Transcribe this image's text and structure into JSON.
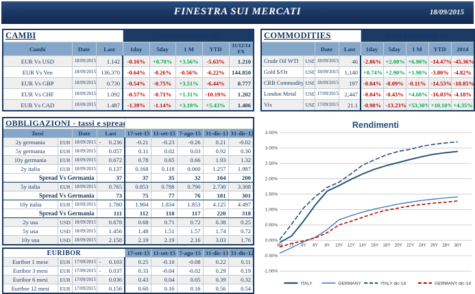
{
  "header": {
    "title": "FINESTRA SUI MERCATI",
    "date": "18/09/2015"
  },
  "palette": {
    "navy": "#17375E",
    "band_navy": "#1b3a66",
    "header_blue": "#84a7c9",
    "row_gray": "#efefef",
    "negative_red": "#C00000",
    "positive_green": "#00A550",
    "italy_line": "#1F4E79",
    "germany_line": "#2E75B6",
    "germany14_line": "#C00000"
  },
  "cambi": {
    "title": "CAMBI",
    "perf_header": "Performance %",
    "columns": [
      "Cambi",
      "Date",
      "Last",
      "1day",
      "5day",
      "1 M",
      "YTD",
      "31/12/14 FX"
    ],
    "rows": [
      {
        "name": "EUR Vs USD",
        "date": "18/09/2015",
        "last": "1.142",
        "perf": [
          "-0.16%",
          "+0.70%",
          "+3.56%",
          "-5.63%"
        ],
        "fx": "1.210"
      },
      {
        "name": "EUR Vs Yen",
        "date": "18/09/2015",
        "last": "136.370",
        "perf": [
          "-0.64%",
          "-0.26%",
          "-0.56%",
          "-6.22%"
        ],
        "fx": "144.850"
      },
      {
        "name": "EUR Vs GBP",
        "date": "18/09/2015",
        "last": "0.730",
        "perf": [
          "-0.54%",
          "-0.75%",
          "+3.51%",
          "-6.44%"
        ],
        "fx": "0.777"
      },
      {
        "name": "EUR Vs CHF",
        "date": "18/09/2015",
        "last": "1.092",
        "perf": [
          "-0.57%",
          "-0.71%",
          "+1.31%",
          "-10.19%"
        ],
        "fx": "1.202"
      },
      {
        "name": "EUR Vs CAD",
        "date": "18/09/2015",
        "last": "1.487",
        "perf": [
          "-1.39%",
          "-1.14%",
          "+3.19%",
          "+5.43%"
        ],
        "fx": "1.406"
      }
    ]
  },
  "commodities": {
    "title": "COMMODITIES",
    "perf_header": "Performance %",
    "columns": [
      "Date",
      "Last",
      "1day",
      "5day",
      "1 M",
      "YTD",
      "2014"
    ],
    "rows": [
      {
        "name": "Crude Oil WTI",
        "ccy": "USD",
        "date": "18/09/2015",
        "last": "46",
        "perf": [
          "-2.86%",
          "+2.08%",
          "+6.90%",
          "-14.47%",
          "-45.36%"
        ]
      },
      {
        "name": "Gold $/Oz",
        "ccy": "USD",
        "date": "18/09/2015",
        "last": "1,140",
        "perf": [
          "+0.74%",
          "+2.90%",
          "+1.98%",
          "-3.80%",
          "-4.82%"
        ]
      },
      {
        "name": "CRB Commodity",
        "ccy": "USD",
        "date": "18/09/2015",
        "last": "197",
        "perf": [
          "-0.84%",
          "-0.09%",
          "-0.11%",
          "-14.53%",
          "-18.85%"
        ]
      },
      {
        "name": "London Metal",
        "ccy": "USD",
        "date": "17/09/2015",
        "last": "2,447",
        "perf": [
          "-0.04%",
          "-0.43%",
          "+4.68%",
          "-16.03%",
          "-4.18%"
        ]
      },
      {
        "name": "Vix",
        "ccy": "USD",
        "date": "17/09/2015",
        "last": "21.1",
        "perf": [
          "-0.98%",
          "-13.23%",
          "+53.30%",
          "+10.10%",
          "+4.35%"
        ]
      }
    ]
  },
  "obbligazioni": {
    "title": "OBBLIGAZIONI - tassi e spread",
    "columns": [
      "Tassi",
      "Date",
      "Last",
      "17-set-15",
      "11-set-15",
      "7-ago-15",
      "31-dic-13",
      "31-dic-12"
    ],
    "rows": [
      {
        "type": "rate",
        "name": "2y germania",
        "ccy": "EUR",
        "date": "18/09/2015",
        "last": "0.236",
        "neg": true,
        "hist": [
          "-0.21",
          "-0.23",
          "-0.26",
          "0.21",
          "-0.02"
        ]
      },
      {
        "type": "rate",
        "name": "5y germania",
        "ccy": "EUR",
        "date": "18/09/2015",
        "last": "0.057",
        "neg": false,
        "hist": [
          "0.11",
          "0.02",
          "0.03",
          "0.92",
          "0.30"
        ]
      },
      {
        "type": "rate",
        "name": "10y germania",
        "ccy": "EUR",
        "date": "18/09/2015",
        "last": "0.672",
        "neg": false,
        "hist": [
          "0.78",
          "0.65",
          "0.66",
          "1.93",
          "1.32"
        ]
      },
      {
        "type": "rate",
        "name": "2y italia",
        "ccy": "EUR",
        "date": "18/09/2015",
        "last": "0.137",
        "neg": false,
        "hist": [
          "0.168",
          "0.118",
          "0.060",
          "1.257",
          "1.987"
        ]
      },
      {
        "type": "spread",
        "name": "Spread Vs Germania",
        "last": "37",
        "hist": [
          "37",
          "35",
          "32",
          "104",
          "200"
        ]
      },
      {
        "type": "rate",
        "name": "5y italia",
        "ccy": "EUR",
        "date": "18/09/2015",
        "last": "0.765",
        "neg": false,
        "hist": [
          "0.853",
          "0.788",
          "0.790",
          "2.730",
          "3.308"
        ]
      },
      {
        "type": "spread",
        "name": "Spread Vs Germania",
        "last": "73",
        "hist": [
          "75",
          "77",
          "76",
          "181",
          "301"
        ]
      },
      {
        "type": "rate",
        "name": "10y italia",
        "ccy": "EUR",
        "date": "18/09/2015",
        "last": "1.780",
        "neg": false,
        "hist": [
          "1.904",
          "1.834",
          "1.853",
          "4.125",
          "4.497"
        ]
      },
      {
        "type": "spread",
        "name": "Spread Vs Germania",
        "last": "111",
        "hist": [
          "112",
          "118",
          "117",
          "220",
          "318"
        ]
      },
      {
        "type": "rate",
        "name": "2y usa",
        "ccy": "USD",
        "date": "18/09/2015",
        "last": "0.678",
        "neg": false,
        "hist": [
          "0.68",
          "0.71",
          "0.72",
          "0.38",
          "0.25"
        ]
      },
      {
        "type": "rate",
        "name": "5y usa",
        "ccy": "USD",
        "date": "18/09/2015",
        "last": "1.456",
        "neg": false,
        "hist": [
          "1.48",
          "1.51",
          "1.57",
          "1.74",
          "0.72"
        ]
      },
      {
        "type": "rate",
        "name": "10y usa",
        "ccy": "USD",
        "date": "18/09/2015",
        "last": "2.158",
        "neg": false,
        "hist": [
          "2.19",
          "2.19",
          "2.16",
          "3.03",
          "1.76"
        ]
      }
    ]
  },
  "euribor": {
    "title": "EURIBOR",
    "columns": [
      "17-set-15",
      "11-set-15",
      "7-ago-15",
      "31-dic-13",
      "31-dic-12"
    ],
    "rows": [
      {
        "name": "Euribor 1 mese",
        "ccy": "EUR",
        "date": "17/09/2015",
        "last": "0.103",
        "neg": true,
        "hist": [
          "0.25",
          "-0.10",
          "-0.08",
          "0.22",
          "0.11"
        ]
      },
      {
        "name": "Euribor 3 mesi",
        "ccy": "EUR",
        "date": "17/09/2015",
        "last": "0.037",
        "neg": true,
        "hist": [
          "0.33",
          "-0.04",
          "-0.02",
          "0.29",
          "0.19"
        ]
      },
      {
        "name": "Euribor 6 mesi",
        "ccy": "EUR",
        "date": "17/09/2015",
        "last": "0.036",
        "neg": false,
        "hist": [
          "0.43",
          "0.04",
          "0.05",
          "0.39",
          "0.32"
        ]
      },
      {
        "name": "Euribor 12 mesi",
        "ccy": "EUR",
        "date": "17/09/2015",
        "last": "0.156",
        "neg": false,
        "hist": [
          "0.60",
          "0.16",
          "0.16",
          "0.56",
          "0.54"
        ]
      }
    ]
  },
  "chart_data": {
    "type": "line",
    "title": "Rendimenti",
    "xlabel": "",
    "ylabel": "",
    "ylim": [
      -1.0,
      3.5
    ],
    "grid": true,
    "legend_position": "bottom",
    "x_labels": [
      "3M",
      "2Y",
      "4Y",
      "6Y",
      "8Y",
      "10Y",
      "12Y",
      "14Y",
      "16Y",
      "18Y",
      "20Y",
      "22Y",
      "24Y",
      "26Y",
      "28Y",
      "30Y"
    ],
    "y_ticks": [
      "3.50%",
      "3.00%",
      "2.50%",
      "2.00%",
      "1.50%",
      "1.00%",
      "0.50%",
      "0.00%",
      "-0.50%",
      "-1.00%"
    ],
    "series": [
      {
        "name": "ITALY",
        "color": "#1F4E79",
        "dash": "solid",
        "width": 1.9,
        "values": [
          -0.07,
          0.14,
          0.62,
          1.15,
          1.6,
          1.78,
          1.98,
          2.16,
          2.31,
          2.43,
          2.53,
          2.63,
          2.72,
          2.8,
          2.85,
          2.89
        ]
      },
      {
        "name": "GERMANY",
        "color": "#2E75B6",
        "dash": "solid",
        "width": 1.3,
        "values": [
          -0.42,
          -0.24,
          -0.05,
          0.1,
          0.35,
          0.67,
          0.8,
          0.92,
          1.02,
          1.1,
          1.18,
          1.24,
          1.3,
          1.34,
          1.38,
          1.41
        ]
      },
      {
        "name": "ITALY dic-14",
        "color": "#1F4E79",
        "dash": "dashed",
        "width": 1.6,
        "values": [
          0.02,
          0.52,
          1.05,
          1.42,
          1.72,
          1.89,
          2.16,
          2.45,
          2.62,
          2.78,
          2.89,
          2.96,
          3.06,
          3.12,
          3.17,
          3.2
        ]
      },
      {
        "name": "GERMANY dic-14",
        "color": "#C00000",
        "dash": "dashed",
        "width": 1.6,
        "values": [
          -0.22,
          -0.1,
          -0.02,
          0.08,
          0.25,
          0.5,
          0.62,
          0.75,
          0.88,
          0.98,
          1.05,
          1.12,
          1.17,
          1.21,
          1.24,
          1.28
        ]
      }
    ]
  }
}
